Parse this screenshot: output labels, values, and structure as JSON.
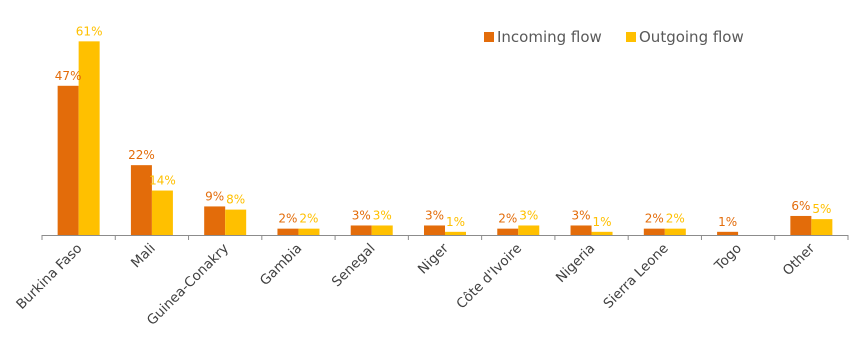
{
  "chart_data": {
    "type": "bar",
    "categories": [
      "Burkina Faso",
      "Mali",
      "Guinea-Conakry",
      "Gambia",
      "Senegal",
      "Niger",
      "Côte d'Ivoire",
      "Nigeria",
      "Sierra Leone",
      "Togo",
      "Other"
    ],
    "series": [
      {
        "name": "Incoming flow",
        "color": "#E36C0A",
        "values": [
          47,
          22,
          9,
          2,
          3,
          3,
          2,
          3,
          2,
          1,
          6
        ],
        "labels": [
          "47%",
          "22%",
          "9%",
          "2%",
          "3%",
          "3%",
          "2%",
          "3%",
          "2%",
          "1%",
          "6%"
        ]
      },
      {
        "name": "Outgoing flow",
        "color": "#FFC000",
        "values": [
          61,
          14,
          8,
          2,
          3,
          1,
          3,
          1,
          2,
          0,
          5
        ],
        "labels": [
          "61%",
          "14%",
          "8%",
          "2%",
          "3%",
          "1%",
          "3%",
          "1%",
          "2%",
          "",
          "5%"
        ]
      }
    ],
    "title": "",
    "xlabel": "",
    "ylabel": "",
    "ylim": [
      0,
      63
    ],
    "grid": false,
    "y_axis_visible": false,
    "legend_position": "top-right"
  }
}
